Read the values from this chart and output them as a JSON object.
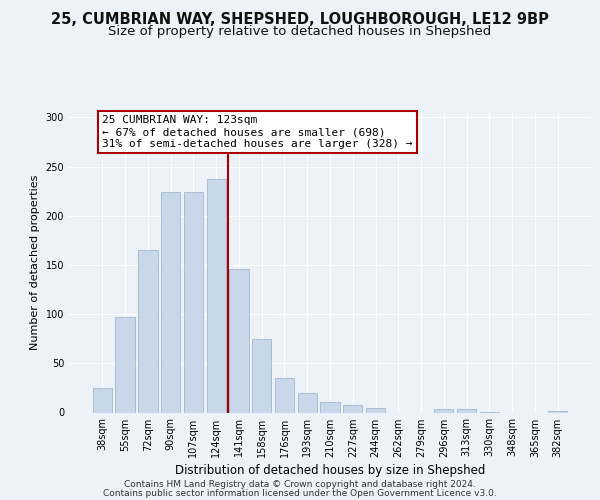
{
  "title1": "25, CUMBRIAN WAY, SHEPSHED, LOUGHBOROUGH, LE12 9BP",
  "title2": "Size of property relative to detached houses in Shepshed",
  "xlabel": "Distribution of detached houses by size in Shepshed",
  "ylabel": "Number of detached properties",
  "bar_labels": [
    "38sqm",
    "55sqm",
    "72sqm",
    "90sqm",
    "107sqm",
    "124sqm",
    "141sqm",
    "158sqm",
    "176sqm",
    "193sqm",
    "210sqm",
    "227sqm",
    "244sqm",
    "262sqm",
    "279sqm",
    "296sqm",
    "313sqm",
    "330sqm",
    "348sqm",
    "365sqm",
    "382sqm"
  ],
  "bar_values": [
    25,
    97,
    165,
    224,
    224,
    237,
    146,
    75,
    35,
    20,
    11,
    8,
    5,
    0,
    0,
    4,
    4,
    1,
    0,
    0,
    2
  ],
  "bar_color": "#c8d8ea",
  "bar_edgecolor": "#a0b8ce",
  "vline_color": "#aa0000",
  "annotation_text": "25 CUMBRIAN WAY: 123sqm\n← 67% of detached houses are smaller (698)\n31% of semi-detached houses are larger (328) →",
  "annotation_box_color": "#ffffff",
  "annotation_box_edgecolor": "#aa0000",
  "ylim": [
    0,
    305
  ],
  "footer1": "Contains HM Land Registry data © Crown copyright and database right 2024.",
  "footer2": "Contains public sector information licensed under the Open Government Licence v3.0.",
  "bg_color": "#edf2f8",
  "grid_color": "#ffffff",
  "title1_fontsize": 10.5,
  "title2_fontsize": 9.5,
  "xlabel_fontsize": 8.5,
  "ylabel_fontsize": 8,
  "tick_fontsize": 7,
  "footer_fontsize": 6.5,
  "ann_fontsize": 8
}
